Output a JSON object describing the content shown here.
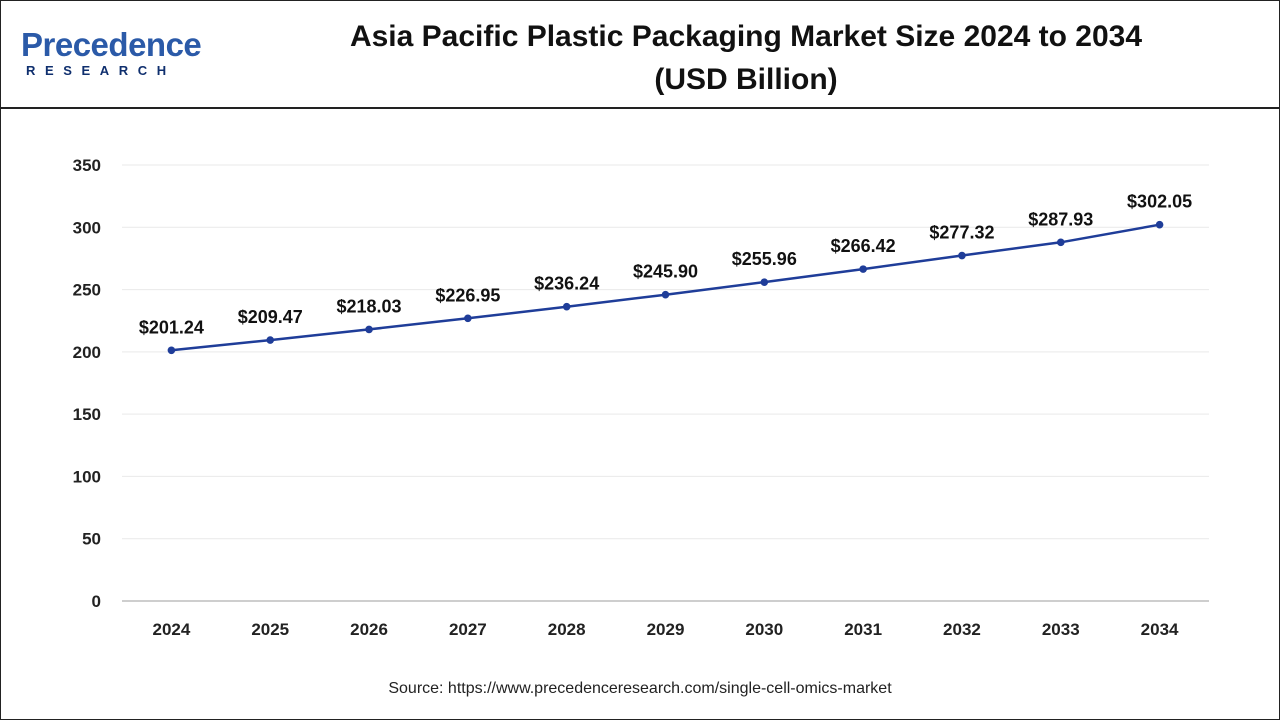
{
  "header": {
    "logo_main": "Precedence",
    "logo_sub": "RESEARCH",
    "title_line1": "Asia Pacific Plastic Packaging Market Size 2024 to 2034",
    "title_line2": "(USD Billion)"
  },
  "colors": {
    "line": "#1f3d99",
    "logo_blue": "#2b5aa8",
    "logo_dark": "#0f2f6e",
    "grid": "#e9e9e9"
  },
  "chart_data": {
    "type": "line",
    "title": "Asia Pacific Plastic Packaging Market Size 2024 to 2034 (USD Billion)",
    "xlabel": "",
    "ylabel": "",
    "ylim": [
      0,
      350
    ],
    "yticks": [
      0,
      50,
      100,
      150,
      200,
      250,
      300,
      350
    ],
    "grid": true,
    "legend": "none",
    "categories": [
      "2024",
      "2025",
      "2026",
      "2027",
      "2028",
      "2029",
      "2030",
      "2031",
      "2032",
      "2033",
      "2034"
    ],
    "values": [
      201.24,
      209.47,
      218.03,
      226.95,
      236.24,
      245.9,
      255.96,
      266.42,
      277.32,
      287.93,
      302.05
    ],
    "data_labels": [
      "$201.24",
      "$209.47",
      "$218.03",
      "$226.95",
      "$236.24",
      "$245.90",
      "$255.96",
      "$266.42",
      "$277.32",
      "$287.93",
      "$302.05"
    ]
  },
  "footer": {
    "source": "Source: https://www.precedenceresearch.com/single-cell-omics-market"
  }
}
